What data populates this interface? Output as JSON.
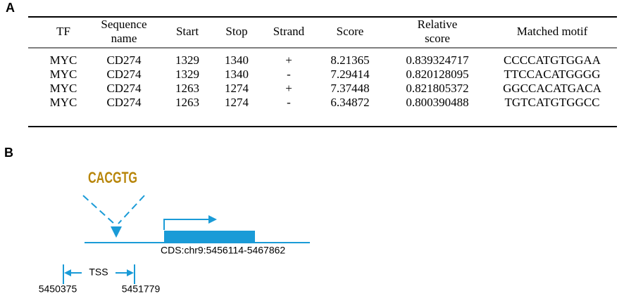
{
  "panel_a": {
    "label": "A",
    "table": {
      "header": [
        "TF",
        "Sequence name",
        "Start",
        "Stop",
        "Strand",
        "Score",
        "Relative score",
        "Matched motif"
      ],
      "rows": [
        [
          "MYC",
          "CD274",
          "1329",
          "1340",
          "+",
          "8.21365",
          "0.839324717",
          "CCCCATGTGGAA"
        ],
        [
          "MYC",
          "CD274",
          "1329",
          "1340",
          "-",
          "7.29414",
          "0.820128095",
          "TTCCACATGGGG"
        ],
        [
          "MYC",
          "CD274",
          "1263",
          "1274",
          "+",
          "7.37448",
          "0.821805372",
          "GGCCACATGACA"
        ],
        [
          "MYC",
          "CD274",
          "1263",
          "1274",
          "-",
          "6.34872",
          "0.800390488",
          "TGTCATGTGGCC"
        ]
      ]
    }
  },
  "panel_b": {
    "label": "B",
    "motif_logo": "CACGTG",
    "cds": "CDS:chr9:5456114-5467862",
    "tss": "TSS",
    "tss_start": "5450375",
    "tss_end": "5451779"
  }
}
